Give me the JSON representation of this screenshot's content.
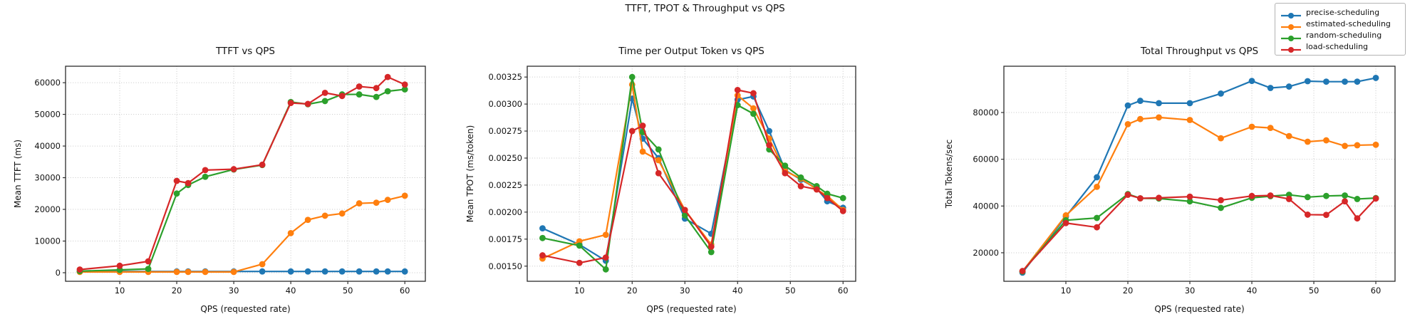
{
  "figure": {
    "title": "TTFT, TPOT & Throughput vs QPS"
  },
  "legend": {
    "position": "top-right",
    "entries": [
      {
        "label": "precise-scheduling",
        "color": "#1f77b4"
      },
      {
        "label": "estimated-scheduling",
        "color": "#ff7f0e"
      },
      {
        "label": "random-scheduling",
        "color": "#2ca02c"
      },
      {
        "label": "load-scheduling",
        "color": "#d62728"
      }
    ]
  },
  "chart_data": [
    {
      "type": "line",
      "title": "TTFT vs QPS",
      "xlabel": "QPS (requested rate)",
      "ylabel": "Mean TTFT (ms)",
      "grid": true,
      "x": [
        3,
        10,
        15,
        20,
        22,
        25,
        30,
        35,
        40,
        43,
        46,
        49,
        52,
        55,
        57,
        60
      ],
      "xticks": [
        10,
        20,
        30,
        40,
        50,
        60
      ],
      "yticks": [
        0,
        10000,
        20000,
        30000,
        40000,
        50000,
        60000
      ],
      "ytick_labels": [
        "0",
        "10000",
        "20000",
        "30000",
        "40000",
        "50000",
        "60000"
      ],
      "xlim": [
        0.5,
        63.6
      ],
      "ylim": [
        -2700,
        65200
      ],
      "series": [
        {
          "name": "precise-scheduling",
          "color": "#1f77b4",
          "values": [
            400,
            400,
            400,
            400,
            400,
            400,
            400,
            400,
            400,
            400,
            400,
            400,
            400,
            400,
            400,
            400
          ]
        },
        {
          "name": "estimated-scheduling",
          "color": "#ff7f0e",
          "values": [
            250,
            250,
            250,
            250,
            250,
            250,
            250,
            2700,
            12500,
            16700,
            18000,
            18700,
            21900,
            22100,
            23000,
            24300
          ]
        },
        {
          "name": "random-scheduling",
          "color": "#2ca02c",
          "values": [
            500,
            900,
            1200,
            25000,
            27700,
            30300,
            32600,
            34000,
            53900,
            53200,
            54200,
            56300,
            56300,
            55500,
            57300,
            57900
          ]
        },
        {
          "name": "load-scheduling",
          "color": "#d62728",
          "values": [
            1000,
            2200,
            3600,
            29000,
            28300,
            32400,
            32700,
            34100,
            53600,
            53300,
            56800,
            55800,
            58800,
            58300,
            61800,
            59400
          ]
        }
      ]
    },
    {
      "type": "line",
      "title": "Time per Output Token vs QPS",
      "xlabel": "QPS (requested rate)",
      "ylabel": "Mean TPOT (ms/token)",
      "grid": true,
      "x": [
        3,
        10,
        15,
        20,
        22,
        25,
        30,
        35,
        40,
        43,
        46,
        49,
        52,
        55,
        57,
        60
      ],
      "xticks": [
        10,
        20,
        30,
        40,
        50,
        60
      ],
      "yticks": [
        0.0015,
        0.00175,
        0.002,
        0.00225,
        0.0025,
        0.00275,
        0.003,
        0.00325
      ],
      "ytick_labels": [
        "0.00150",
        "0.00175",
        "0.00200",
        "0.00225",
        "0.00250",
        "0.00275",
        "0.00300",
        "0.00325"
      ],
      "xlim": [
        0.1,
        62.4
      ],
      "ylim": [
        0.00136,
        0.00335
      ],
      "series": [
        {
          "name": "precise-scheduling",
          "color": "#1f77b4",
          "values": [
            0.00185,
            0.0017,
            0.00155,
            0.00305,
            0.00268,
            0.0025,
            0.00194,
            0.0018,
            0.00304,
            0.00307,
            0.00275,
            0.00239,
            0.0023,
            0.00222,
            0.0021,
            0.00204
          ]
        },
        {
          "name": "estimated-scheduling",
          "color": "#ff7f0e",
          "values": [
            0.00157,
            0.00173,
            0.00179,
            0.00318,
            0.00256,
            0.00248,
            0.00202,
            0.0017,
            0.00308,
            0.00296,
            0.00268,
            0.00238,
            0.00231,
            0.00221,
            0.00215,
            0.00202
          ]
        },
        {
          "name": "random-scheduling",
          "color": "#2ca02c",
          "values": [
            0.00176,
            0.00169,
            0.00147,
            0.00325,
            0.00274,
            0.00258,
            0.00197,
            0.00163,
            0.00299,
            0.00291,
            0.00258,
            0.00243,
            0.00232,
            0.00224,
            0.00217,
            0.00213
          ]
        },
        {
          "name": "load-scheduling",
          "color": "#d62728",
          "values": [
            0.0016,
            0.00153,
            0.00158,
            0.00275,
            0.0028,
            0.00236,
            0.00202,
            0.00168,
            0.00313,
            0.0031,
            0.00262,
            0.00236,
            0.00224,
            0.00221,
            0.00213,
            0.00201
          ]
        }
      ]
    },
    {
      "type": "line",
      "title": "Total Throughput vs QPS",
      "xlabel": "QPS (requested rate)",
      "ylabel": "Total Tokens/sec",
      "grid": true,
      "x": [
        3,
        10,
        15,
        20,
        22,
        25,
        30,
        35,
        40,
        43,
        46,
        49,
        52,
        55,
        57,
        60
      ],
      "xticks": [
        10,
        20,
        30,
        40,
        50,
        60
      ],
      "yticks": [
        20000,
        40000,
        60000,
        80000
      ],
      "ytick_labels": [
        "20000",
        "40000",
        "60000",
        "80000"
      ],
      "xlim": [
        0,
        63.1
      ],
      "ylim": [
        7800,
        99800
      ],
      "series": [
        {
          "name": "precise-scheduling",
          "color": "#1f77b4",
          "values": [
            11500,
            35500,
            52300,
            83000,
            85000,
            84000,
            84000,
            88100,
            93500,
            90500,
            91100,
            93400,
            93200,
            93200,
            93200,
            94800
          ]
        },
        {
          "name": "estimated-scheduling",
          "color": "#ff7f0e",
          "values": [
            12000,
            36000,
            48200,
            75000,
            77200,
            77900,
            76800,
            69000,
            73900,
            73400,
            69900,
            67500,
            68100,
            65700,
            66000,
            66200
          ]
        },
        {
          "name": "random-scheduling",
          "color": "#2ca02c",
          "values": [
            12000,
            33900,
            34900,
            45100,
            43300,
            43200,
            42000,
            39200,
            43500,
            44200,
            44800,
            43800,
            44300,
            44500,
            43000,
            43400
          ]
        },
        {
          "name": "load-scheduling",
          "color": "#d62728",
          "values": [
            12200,
            32700,
            30900,
            44800,
            43300,
            43500,
            44000,
            42500,
            44300,
            44500,
            43000,
            36300,
            36200,
            42000,
            34700,
            43200
          ]
        }
      ]
    }
  ]
}
